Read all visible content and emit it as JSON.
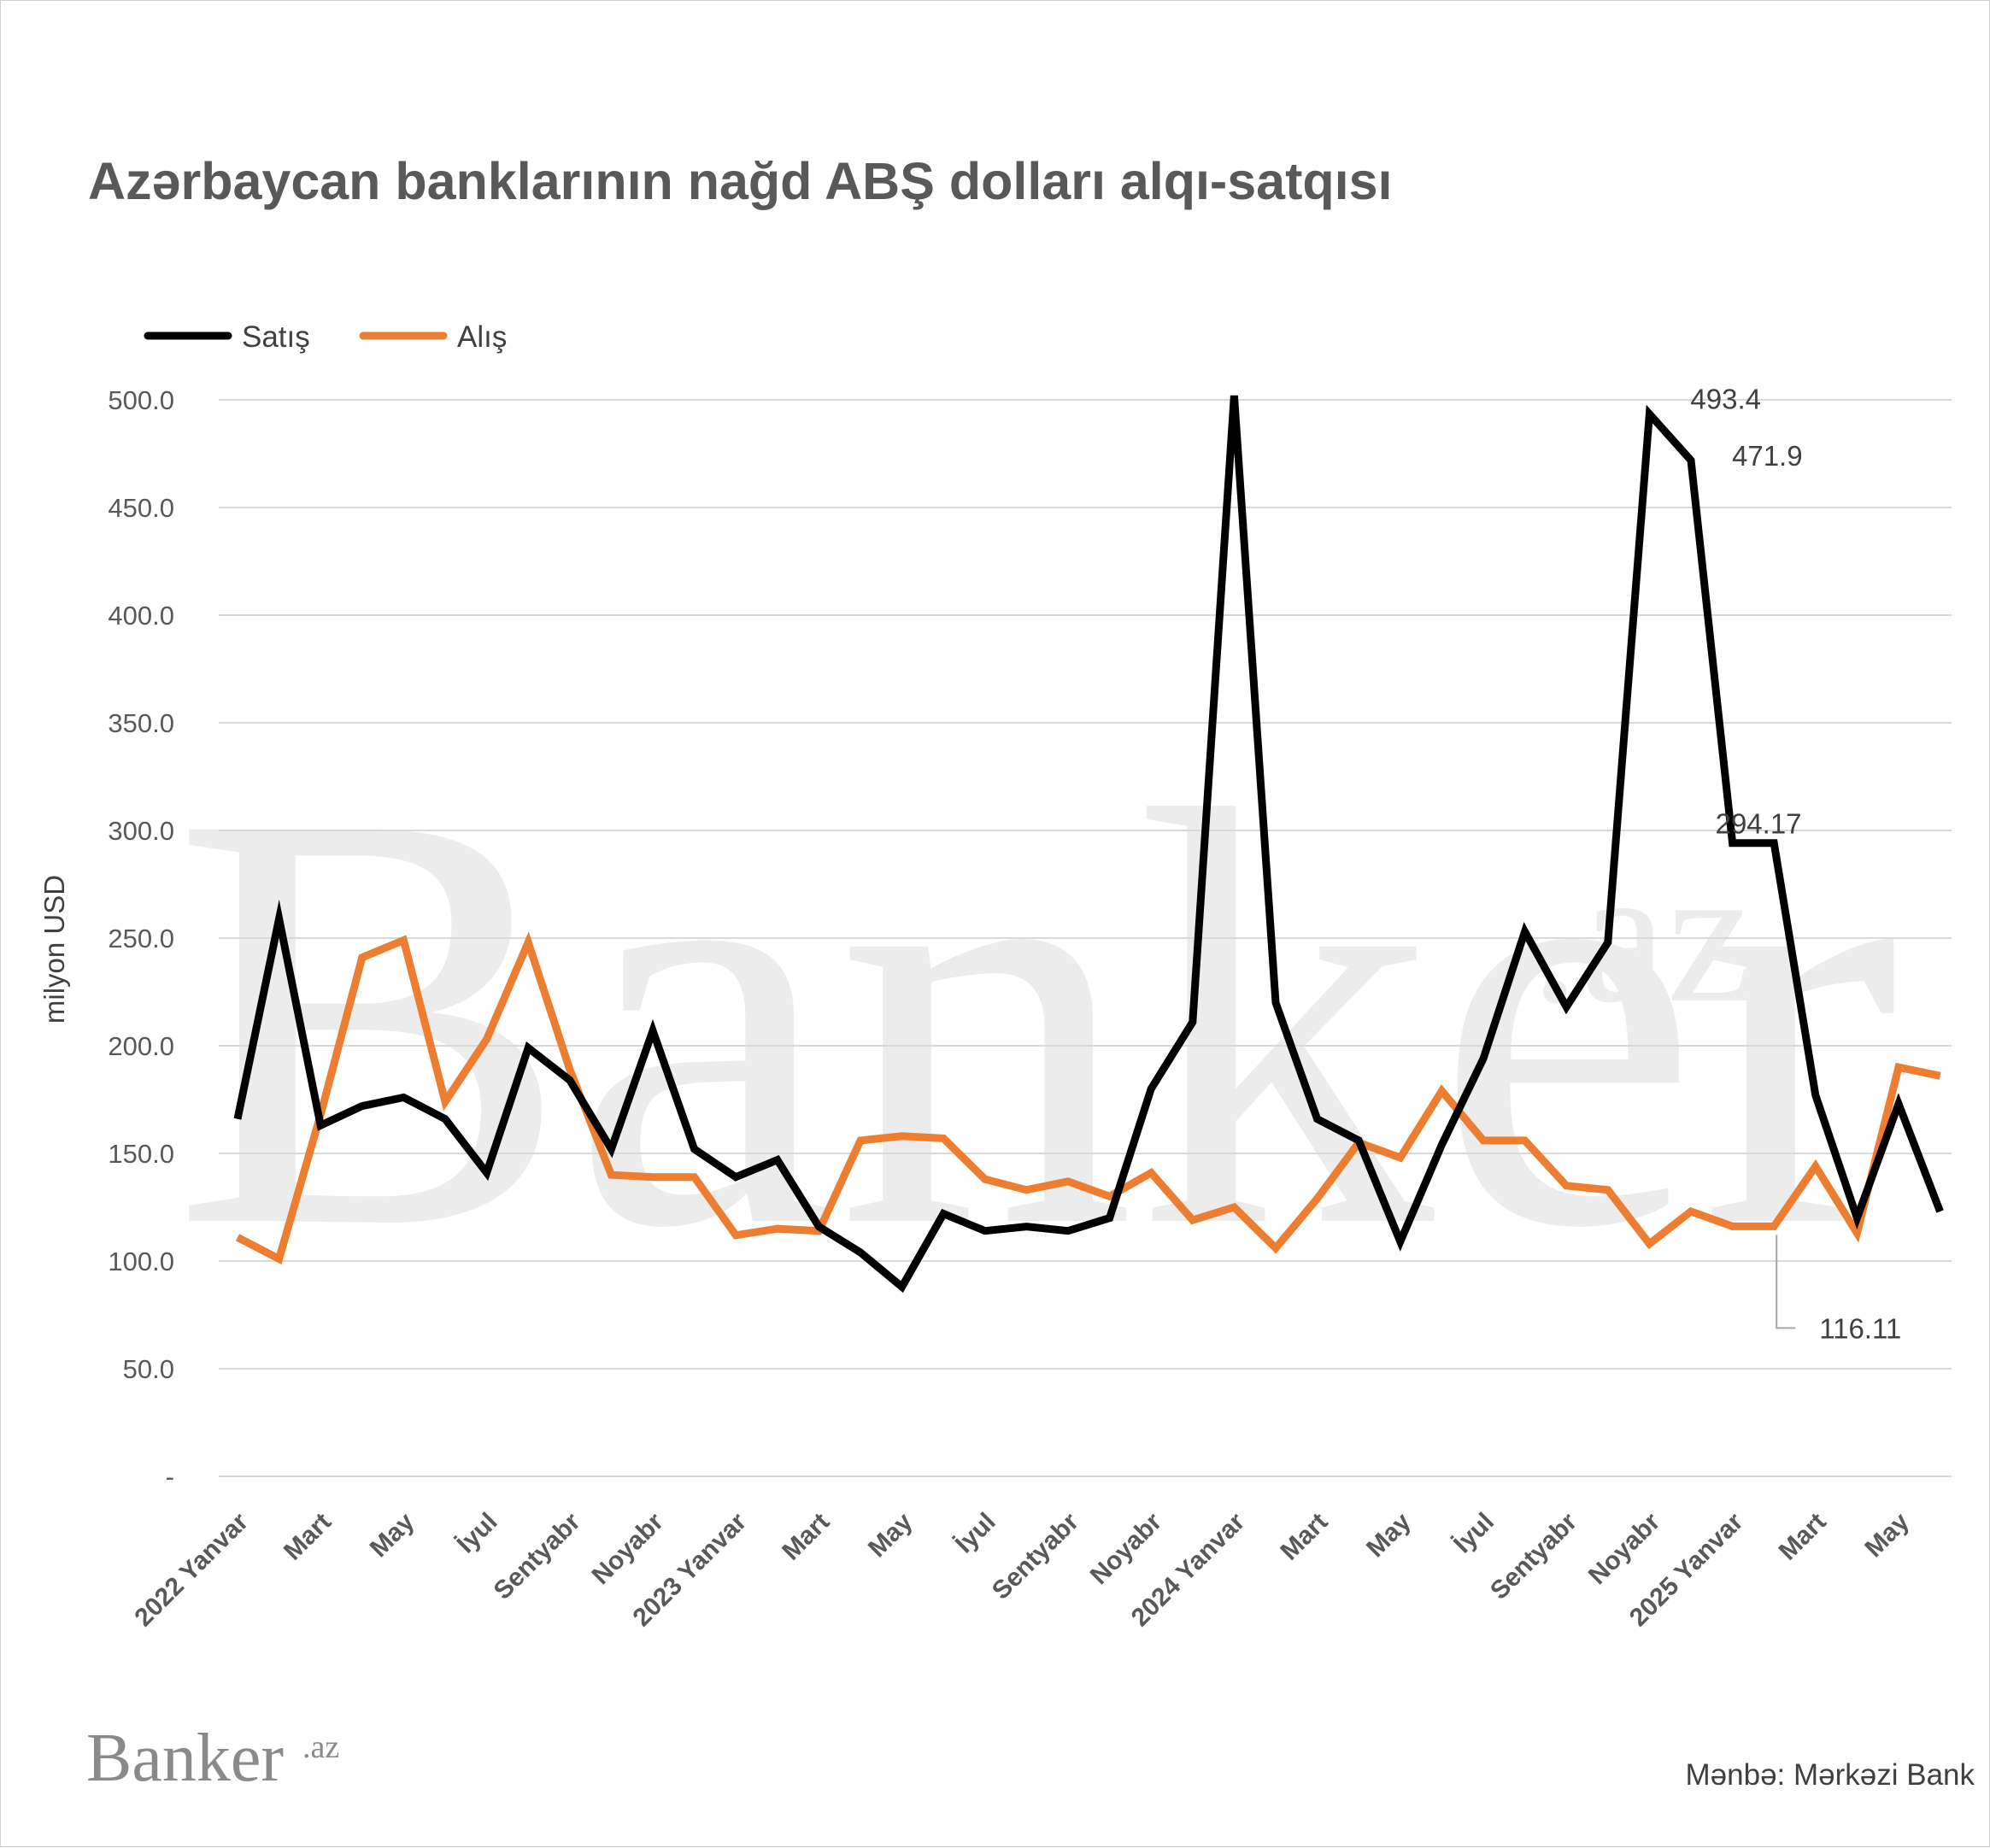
{
  "chart_data": {
    "type": "line",
    "title": "Azərbaycan banklarının nağd ABŞ dolları alqı-satqısı",
    "ylabel": "milyon USD",
    "xlabel": "",
    "ylim": [
      0,
      500
    ],
    "yticks": [
      "-",
      "50.0",
      "100.0",
      "150.0",
      "200.0",
      "250.0",
      "300.0",
      "350.0",
      "400.0",
      "450.0",
      "500.0"
    ],
    "grid": true,
    "legend_position": "top-left",
    "x_tick_labels": [
      {
        "index": 0,
        "label": "2022 Yanvar"
      },
      {
        "index": 2,
        "label": "Mart"
      },
      {
        "index": 4,
        "label": "May"
      },
      {
        "index": 6,
        "label": "İyul"
      },
      {
        "index": 8,
        "label": "Sentyabr"
      },
      {
        "index": 10,
        "label": "Noyabr"
      },
      {
        "index": 12,
        "label": "2023 Yanvar"
      },
      {
        "index": 14,
        "label": "Mart"
      },
      {
        "index": 16,
        "label": "May"
      },
      {
        "index": 18,
        "label": "İyul"
      },
      {
        "index": 20,
        "label": "Sentyabr"
      },
      {
        "index": 22,
        "label": "Noyabr"
      },
      {
        "index": 24,
        "label": "2024 Yanvar"
      },
      {
        "index": 26,
        "label": "Mart"
      },
      {
        "index": 28,
        "label": "May"
      },
      {
        "index": 30,
        "label": "İyul"
      },
      {
        "index": 32,
        "label": "Sentyabr"
      },
      {
        "index": 34,
        "label": "Noyabr"
      },
      {
        "index": 36,
        "label": "2025 Yanvar"
      },
      {
        "index": 38,
        "label": "Mart"
      },
      {
        "index": 40,
        "label": "May"
      }
    ],
    "series": [
      {
        "name": "Satış",
        "color": "#000000",
        "values": [
          166,
          259,
          163,
          172,
          176,
          166,
          141,
          199,
          184,
          152,
          207,
          152,
          139,
          147,
          116,
          104,
          88,
          122,
          114,
          116,
          114,
          120,
          180,
          211,
          502,
          220,
          166,
          156,
          109,
          154,
          194,
          253,
          218,
          248,
          493.4,
          471.9,
          294.17,
          294.17,
          177,
          120,
          173,
          123
        ]
      },
      {
        "name": "Alış",
        "color": "#ED7D31",
        "values": [
          111,
          101,
          168,
          241,
          249,
          174,
          203,
          248,
          189,
          140,
          139,
          139,
          112,
          115,
          114,
          156,
          158,
          157,
          138,
          133,
          137,
          130,
          141,
          119,
          125,
          106,
          129,
          155,
          148,
          179,
          156,
          156,
          135,
          133,
          108,
          123,
          116.11,
          116.11,
          144,
          113,
          190,
          186
        ]
      }
    ],
    "annotations": [
      {
        "series": "Satış",
        "index": 34,
        "text": "493.4"
      },
      {
        "series": "Satış",
        "index": 35,
        "text": "471.9"
      },
      {
        "series": "Satış",
        "index": 36,
        "text": "294.17"
      },
      {
        "series": "Alış",
        "index": 37,
        "text": "116.11"
      }
    ]
  },
  "source": "Mənbə: Mərkəzi Bank",
  "logo": {
    "name": "Banker",
    "suffix": ".az"
  },
  "watermark": {
    "name": "Banker",
    "suffix": ".az"
  }
}
